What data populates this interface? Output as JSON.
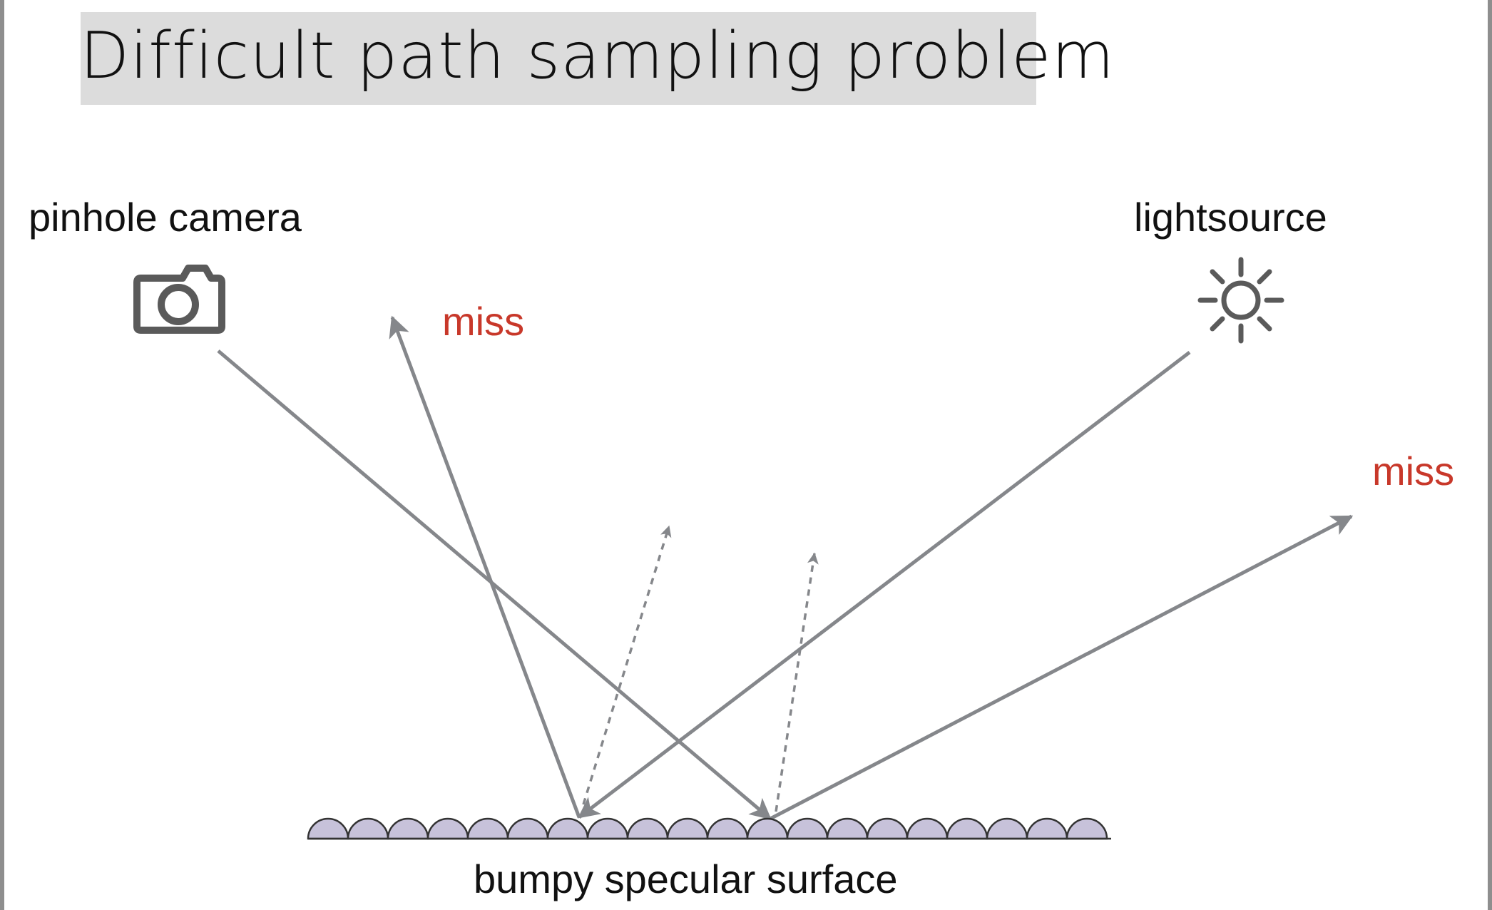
{
  "title": "Difficult path sampling problem",
  "labels": {
    "camera": "pinhole camera",
    "light": "lightsource",
    "miss_left": "miss",
    "miss_right": "miss",
    "surface": "bumpy specular surface"
  },
  "icons": {
    "camera": "camera-icon",
    "light": "sun-icon"
  },
  "colors": {
    "ray": "#85878b",
    "miss": "#c8382a",
    "bump_fill": "#c7c2da",
    "icon": "#5a5a5a",
    "title_bg": "#dcdcdc"
  }
}
